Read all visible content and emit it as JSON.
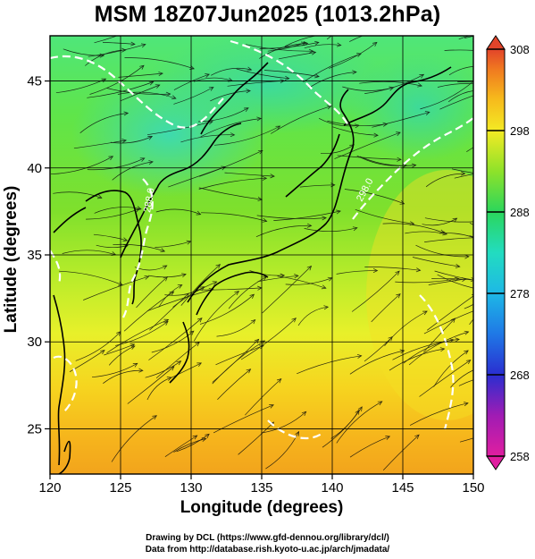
{
  "title": "MSM 18Z07Jun2025 (1013.2hPa)",
  "axes": {
    "xlabel": "Longitude (degrees)",
    "ylabel": "Latitude  (degrees)",
    "x_ticks": [
      "120",
      "125",
      "130",
      "135",
      "140",
      "145",
      "150"
    ],
    "y_ticks": [
      "25",
      "30",
      "35",
      "40",
      "45"
    ]
  },
  "colorbar": {
    "ticks": [
      "308",
      "298",
      "288",
      "278",
      "268",
      "258"
    ],
    "colors": [
      "#e01e8c",
      "#8c1aa8",
      "#2d2fc9",
      "#1f6fe0",
      "#1eb0e8",
      "#20dccf",
      "#27d683",
      "#33d14a",
      "#7ee02a",
      "#d8f22a",
      "#f6d01f",
      "#f49e1a",
      "#ef6b20",
      "#e23a2a"
    ]
  },
  "contour_labels": [
    "288.0",
    "298.0"
  ],
  "credits": [
    "Drawing by DCL (https://www.gfd-dennou.org/library/dcl/)",
    "Data from http://database.rish.kyoto-u.ac.jp/arch/jmadata/"
  ],
  "chart_data": {
    "type": "heatmap",
    "title": "MSM 18Z07Jun2025 (1013.2hPa)",
    "xlabel": "Longitude (degrees)",
    "ylabel": "Latitude  (degrees)",
    "xlim": [
      120,
      150
    ],
    "ylim": [
      22.4,
      47.6
    ],
    "colorbar_range": [
      258,
      308
    ],
    "colorbar_ticks": [
      308,
      298,
      288,
      278,
      268,
      258
    ],
    "contour_levels": [
      288.0,
      298.0
    ],
    "overlay": "wind streamlines",
    "grid": true
  }
}
